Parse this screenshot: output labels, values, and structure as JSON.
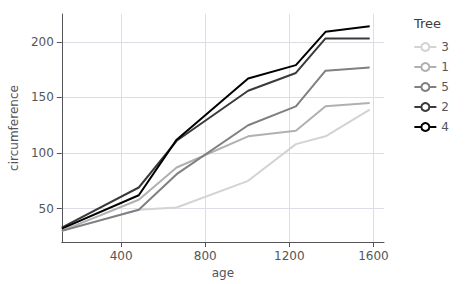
{
  "chart_data": {
    "type": "line",
    "x": [
      118,
      484,
      664,
      1004,
      1231,
      1372,
      1582
    ],
    "series": [
      {
        "name": "3",
        "color": "#d3d3d3",
        "values": [
          30,
          49,
          51,
          75,
          108,
          115,
          139
        ]
      },
      {
        "name": "1",
        "color": "#b0b0b0",
        "values": [
          30,
          58,
          87,
          115,
          120,
          142,
          145
        ]
      },
      {
        "name": "5",
        "color": "#808080",
        "values": [
          30,
          49,
          81,
          125,
          142,
          174,
          177
        ]
      },
      {
        "name": "2",
        "color": "#3a3a3a",
        "values": [
          33,
          69,
          111,
          156,
          172,
          203,
          203
        ]
      },
      {
        "name": "4",
        "color": "#000000",
        "values": [
          32,
          62,
          112,
          167,
          179,
          209,
          214
        ]
      }
    ],
    "xlabel": "age",
    "ylabel": "circumference",
    "xlim": [
      118,
      1650
    ],
    "ylim": [
      20,
      225
    ],
    "xticks": [
      400,
      800,
      1200,
      1600
    ],
    "yticks": [
      50,
      100,
      150,
      200
    ],
    "grid": true,
    "legend": "right",
    "legend_title": "Tree"
  }
}
